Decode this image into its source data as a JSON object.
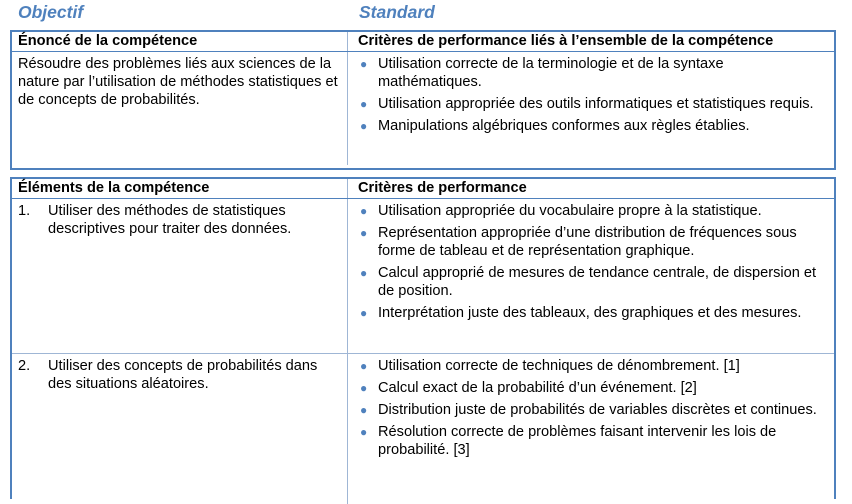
{
  "headers": {
    "objectif": "Objectif",
    "standard": "Standard"
  },
  "section1": {
    "left_header": "Énoncé de la compétence",
    "right_header": "Critères de performance liés à l’ensemble de la compétence",
    "statement": "Résoudre des problèmes liés aux sciences de la nature par l’utilisation de méthodes statistiques et de concepts de probabilités.",
    "criteria": [
      "Utilisation correcte de la terminologie et de la syntaxe mathématiques.",
      "Utilisation appropriée des outils informatiques et statistiques requis.",
      "Manipulations algébriques conformes aux règles établies."
    ]
  },
  "section2": {
    "left_header": "Éléments de la compétence",
    "right_header": "Critères de performance",
    "elements": [
      {
        "number": "1.",
        "text": "Utiliser des méthodes de statistiques descriptives pour traiter des données.",
        "criteria": [
          "Utilisation appropriée du vocabulaire propre à la statistique.",
          "Représentation appropriée d’une distribution de fréquences sous forme de tableau et de représentation graphique.",
          "Calcul approprié de mesures de tendance centrale, de dispersion et de position.",
          "Interprétation juste des tableaux, des graphiques et des mesures."
        ]
      },
      {
        "number": "2.",
        "text": "Utiliser des concepts de probabilités dans des situations aléatoires.",
        "criteria": [
          "Utilisation correcte de techniques de dénombrement. [1]",
          "Calcul exact de la probabilité d’un événement. [2]",
          "Distribution juste de probabilités de variables discrètes et continues.",
          "Résolution correcte de problèmes faisant intervenir les lois de probabilité. [3]"
        ]
      }
    ]
  },
  "bullet_glyph": "●",
  "accent_color": "#4f81bd"
}
